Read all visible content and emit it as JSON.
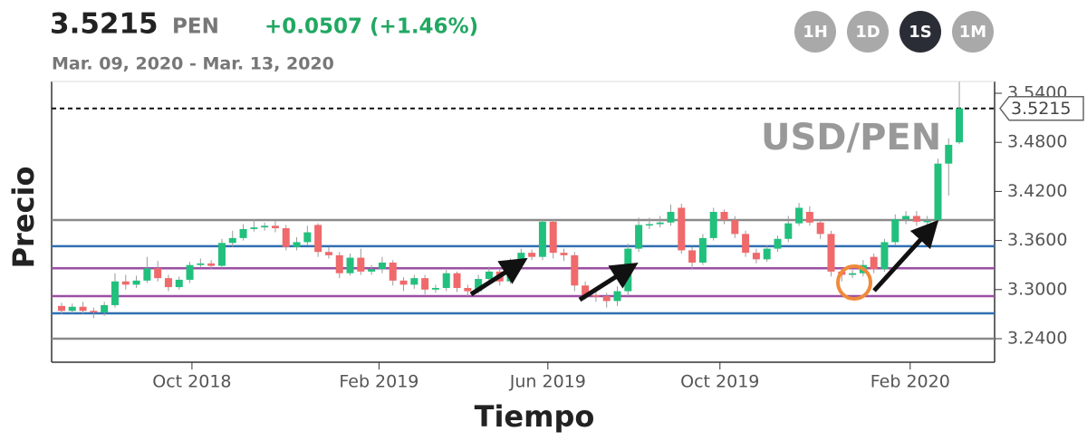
{
  "header": {
    "price": "3.5215",
    "currency": "PEN",
    "change": "+0.0507 (+1.46%)",
    "range": "Mar. 09, 2020 - Mar. 13, 2020",
    "buttons": [
      {
        "label": "1H",
        "active": false
      },
      {
        "label": "1D",
        "active": false
      },
      {
        "label": "1S",
        "active": true
      },
      {
        "label": "1M",
        "active": false
      }
    ]
  },
  "chart_data": {
    "type": "candlestick",
    "watermark": "USD/PEN",
    "xlabel": "Tiempo",
    "ylabel": "Precio",
    "up_color": "#21c07d",
    "down_color": "#f0696b",
    "open": [
      3.28,
      3.274,
      3.279,
      3.274,
      3.272,
      3.281,
      3.31,
      3.306,
      3.311,
      3.326,
      3.314,
      3.303,
      3.312,
      3.33,
      3.332,
      3.329,
      3.357,
      3.363,
      3.374,
      3.376,
      3.378,
      3.375,
      3.352,
      3.358,
      3.379,
      3.346,
      3.342,
      3.32,
      3.339,
      3.322,
      3.325,
      3.333,
      3.311,
      3.306,
      3.314,
      3.3,
      3.302,
      3.32,
      3.302,
      3.298,
      3.313,
      3.322,
      3.31,
      3.333,
      3.345,
      3.34,
      3.383,
      3.345,
      3.342,
      3.305,
      3.293,
      3.292,
      3.286,
      3.298,
      3.35,
      3.379,
      3.38,
      3.382,
      3.4,
      3.348,
      3.333,
      3.363,
      3.395,
      3.385,
      3.368,
      3.345,
      3.337,
      3.35,
      3.362,
      3.381,
      3.395,
      3.382,
      3.368,
      3.322,
      3.318,
      3.32,
      3.34,
      3.325,
      3.358,
      3.386,
      3.39,
      3.383,
      3.385,
      3.454,
      3.48
    ],
    "high": [
      3.284,
      3.283,
      3.285,
      3.278,
      3.285,
      3.32,
      3.318,
      3.317,
      3.34,
      3.335,
      3.318,
      3.316,
      3.334,
      3.338,
      3.336,
      3.362,
      3.372,
      3.38,
      3.386,
      3.382,
      3.384,
      3.379,
      3.364,
      3.378,
      3.381,
      3.352,
      3.346,
      3.344,
      3.35,
      3.33,
      3.34,
      3.336,
      3.315,
      3.318,
      3.318,
      3.306,
      3.324,
      3.322,
      3.306,
      3.318,
      3.328,
      3.326,
      3.338,
      3.35,
      3.349,
      3.386,
      3.386,
      3.35,
      3.346,
      3.31,
      3.298,
      3.296,
      3.304,
      3.356,
      3.388,
      3.388,
      3.39,
      3.404,
      3.405,
      3.352,
      3.368,
      3.4,
      3.398,
      3.39,
      3.372,
      3.35,
      3.354,
      3.366,
      3.39,
      3.406,
      3.402,
      3.386,
      3.372,
      3.326,
      3.324,
      3.336,
      3.344,
      3.362,
      3.392,
      3.396,
      3.396,
      3.39,
      3.46,
      3.485,
      3.554
    ],
    "low": [
      3.27,
      3.271,
      3.27,
      3.265,
      3.268,
      3.278,
      3.3,
      3.302,
      3.308,
      3.31,
      3.298,
      3.3,
      3.308,
      3.327,
      3.325,
      3.326,
      3.352,
      3.36,
      3.371,
      3.372,
      3.37,
      3.348,
      3.348,
      3.354,
      3.34,
      3.338,
      3.314,
      3.317,
      3.318,
      3.318,
      3.32,
      3.305,
      3.298,
      3.301,
      3.294,
      3.296,
      3.298,
      3.297,
      3.292,
      3.295,
      3.309,
      3.305,
      3.307,
      3.33,
      3.336,
      3.336,
      3.338,
      3.335,
      3.298,
      3.288,
      3.285,
      3.278,
      3.28,
      3.292,
      3.346,
      3.374,
      3.376,
      3.378,
      3.344,
      3.325,
      3.33,
      3.36,
      3.38,
      3.363,
      3.34,
      3.332,
      3.334,
      3.346,
      3.358,
      3.378,
      3.378,
      3.362,
      3.316,
      3.31,
      3.314,
      3.316,
      3.32,
      3.322,
      3.354,
      3.38,
      3.378,
      3.378,
      3.382,
      3.415,
      3.478
    ],
    "close": [
      3.274,
      3.279,
      3.274,
      3.272,
      3.281,
      3.31,
      3.306,
      3.311,
      3.326,
      3.314,
      3.303,
      3.312,
      3.33,
      3.332,
      3.329,
      3.357,
      3.363,
      3.374,
      3.376,
      3.378,
      3.375,
      3.352,
      3.358,
      3.37,
      3.346,
      3.342,
      3.32,
      3.339,
      3.322,
      3.325,
      3.333,
      3.311,
      3.306,
      3.314,
      3.3,
      3.302,
      3.32,
      3.302,
      3.298,
      3.313,
      3.322,
      3.31,
      3.333,
      3.345,
      3.34,
      3.383,
      3.345,
      3.342,
      3.305,
      3.293,
      3.292,
      3.286,
      3.298,
      3.35,
      3.379,
      3.38,
      3.382,
      3.395,
      3.348,
      3.333,
      3.363,
      3.395,
      3.385,
      3.368,
      3.345,
      3.337,
      3.35,
      3.362,
      3.381,
      3.4,
      3.382,
      3.368,
      3.322,
      3.318,
      3.32,
      3.33,
      3.325,
      3.358,
      3.386,
      3.39,
      3.383,
      3.384,
      3.454,
      3.477,
      3.5215
    ],
    "xlim": [
      -0.93,
      87.3
    ],
    "xticks": [
      {
        "value": 12.2,
        "label": "Oct 2018"
      },
      {
        "value": 29.7,
        "label": "Feb 2019"
      },
      {
        "value": 45.5,
        "label": "Jun 2019"
      },
      {
        "value": 61.6,
        "label": "Oct 2019"
      },
      {
        "value": 79.4,
        "label": "Feb 2020"
      }
    ],
    "ylim": [
      3.2112,
      3.5544
    ],
    "yticks": [
      {
        "value": 3.54,
        "label": "3.5400"
      },
      {
        "value": 3.48,
        "label": "3.4800"
      },
      {
        "value": 3.42,
        "label": "3.4200"
      },
      {
        "value": 3.36,
        "label": "3.3600"
      },
      {
        "value": 3.3,
        "label": "3.3000"
      },
      {
        "value": 3.24,
        "label": "3.2400"
      }
    ],
    "levels": [
      {
        "value": 3.385,
        "color": "#8a8a8a"
      },
      {
        "value": 3.353,
        "color": "#2f6fb3"
      },
      {
        "value": 3.326,
        "color": "#9b4fa3"
      },
      {
        "value": 3.292,
        "color": "#9b4fa3"
      },
      {
        "value": 3.271,
        "color": "#2f6fb3"
      },
      {
        "value": 3.24,
        "color": "#8a8a8a"
      }
    ],
    "current_price": {
      "value": 3.5215,
      "label": "3.5215"
    }
  }
}
